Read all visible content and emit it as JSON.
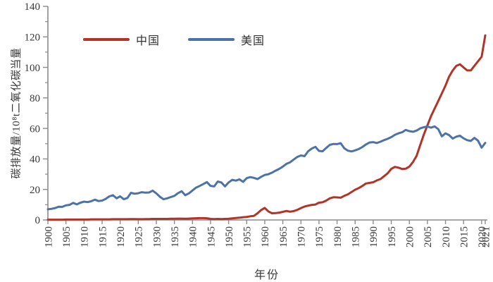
{
  "chart_data": {
    "type": "line",
    "title": "",
    "xlabel": "年份",
    "ylabel": "碳排放量/10⁸t二氧化碳当量",
    "xlim": [
      1900,
      2021
    ],
    "ylim": [
      0,
      140
    ],
    "x_step": 1,
    "x_ticks": [
      1900,
      1905,
      1910,
      1915,
      1920,
      1925,
      1930,
      1935,
      1940,
      1945,
      1950,
      1955,
      1960,
      1965,
      1970,
      1975,
      1980,
      1985,
      1990,
      1995,
      2000,
      2005,
      2010,
      2015,
      2020,
      2021
    ],
    "y_ticks": [
      0,
      20,
      40,
      60,
      80,
      100,
      120,
      140
    ],
    "y_minor_step": 10,
    "grid": false,
    "legend_position": "top-left-inside",
    "axis_color": "#8C8C8C",
    "text_color": "#383838",
    "series": [
      {
        "name": "中国",
        "color": "#B23428",
        "values": [
          0.2,
          0.2,
          0.2,
          0.2,
          0.2,
          0.3,
          0.3,
          0.3,
          0.3,
          0.3,
          0.3,
          0.3,
          0.4,
          0.4,
          0.4,
          0.4,
          0.4,
          0.4,
          0.5,
          0.5,
          0.5,
          0.5,
          0.5,
          0.6,
          0.6,
          0.5,
          0.5,
          0.6,
          0.6,
          0.7,
          0.7,
          0.7,
          0.7,
          0.7,
          0.8,
          0.8,
          0.9,
          0.9,
          0.8,
          0.9,
          1.0,
          1.1,
          1.2,
          1.2,
          1.1,
          0.7,
          0.6,
          0.7,
          0.6,
          0.7,
          0.8,
          1.0,
          1.3,
          1.5,
          1.8,
          2.0,
          2.4,
          2.7,
          4.4,
          6.5,
          7.9,
          5.6,
          4.4,
          4.5,
          4.8,
          5.3,
          5.9,
          5.4,
          5.8,
          6.6,
          7.8,
          8.8,
          9.4,
          9.9,
          10.1,
          11.3,
          11.6,
          12.7,
          14.2,
          14.9,
          14.8,
          14.6,
          15.8,
          16.8,
          18.3,
          19.8,
          20.9,
          22.3,
          23.9,
          24.3,
          24.7,
          25.9,
          26.8,
          28.7,
          30.6,
          33.5,
          34.8,
          34.3,
          33.4,
          33.6,
          35.0,
          38.0,
          42.0,
          49.0,
          56.0,
          62.0,
          68.0,
          73.0,
          78.0,
          83.0,
          88.0,
          94.0,
          98.0,
          101.0,
          102.0,
          100.0,
          98.0,
          98.0,
          101.0,
          104.0,
          107.0,
          121.0
        ]
      },
      {
        "name": "美国",
        "color": "#4D72A7",
        "values": [
          7.0,
          7.3,
          7.8,
          8.7,
          8.6,
          9.6,
          9.9,
          11.2,
          10.2,
          11.3,
          12.0,
          11.7,
          12.3,
          13.3,
          12.4,
          12.7,
          13.8,
          15.5,
          16.2,
          14.2,
          15.5,
          13.6,
          14.4,
          17.8,
          17.2,
          17.5,
          18.2,
          17.9,
          18.0,
          19.2,
          17.4,
          15.2,
          13.6,
          14.2,
          15.0,
          15.8,
          17.6,
          18.8,
          16.2,
          17.4,
          19.3,
          21.2,
          22.3,
          23.5,
          24.8,
          22.3,
          22.0,
          25.2,
          24.6,
          22.0,
          24.6,
          26.3,
          25.8,
          26.6,
          25.0,
          27.4,
          28.1,
          27.6,
          26.8,
          28.3,
          29.5,
          30.0,
          31.0,
          32.3,
          33.5,
          35.0,
          36.8,
          37.8,
          39.6,
          41.3,
          42.3,
          41.8,
          45.0,
          46.8,
          47.9,
          45.3,
          45.0,
          47.2,
          49.2,
          49.8,
          49.7,
          50.3,
          47.0,
          45.4,
          44.9,
          45.6,
          46.5,
          47.8,
          49.5,
          50.8,
          51.0,
          50.4,
          51.3,
          52.3,
          53.2,
          54.3,
          55.8,
          56.8,
          57.5,
          59.0,
          58.2,
          57.8,
          58.6,
          60.0,
          60.8,
          61.2,
          60.5,
          61.3,
          59.5,
          54.8,
          56.8,
          55.6,
          53.3,
          54.6,
          55.2,
          53.5,
          52.3,
          51.8,
          53.8,
          52.0,
          47.4,
          50.5
        ]
      }
    ]
  }
}
